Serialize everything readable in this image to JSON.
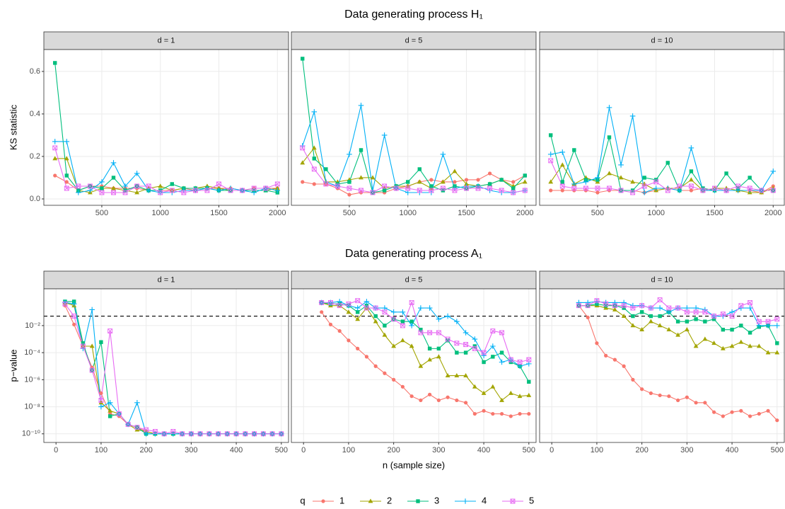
{
  "chart_data": [
    {
      "type": "line",
      "title": "Data generating process H₁",
      "facet": "d = 1",
      "ylabel": "KS statistic",
      "legend_title": "q",
      "x": [
        100,
        200,
        300,
        400,
        500,
        600,
        700,
        800,
        900,
        1000,
        1100,
        1200,
        1300,
        1400,
        1500,
        1600,
        1700,
        1800,
        1900,
        2000
      ],
      "xlim": [
        5,
        2095
      ],
      "xticks": [
        500,
        1000,
        1500,
        2000
      ],
      "ylim": [
        -0.03,
        0.703
      ],
      "yticks": [
        {
          "value": 0,
          "label": "0.0"
        },
        0.2,
        0.4,
        0.6
      ],
      "grid": true,
      "series": [
        {
          "name": "1",
          "color": "#F8766D",
          "values": [
            0.11,
            0.08,
            0.04,
            0.06,
            0.06,
            0.05,
            0.05,
            0.05,
            0.04,
            0.04,
            0.04,
            0.05,
            0.04,
            0.05,
            0.05,
            0.05,
            0.04,
            0.05,
            0.05,
            0.05
          ]
        },
        {
          "name": "2",
          "color": "#A3A500",
          "values": [
            0.19,
            0.19,
            0.04,
            0.03,
            0.05,
            0.05,
            0.04,
            0.03,
            0.05,
            0.06,
            0.04,
            0.05,
            0.05,
            0.06,
            0.05,
            0.04,
            0.04,
            0.04,
            0.04,
            0.05
          ]
        },
        {
          "name": "3",
          "color": "#00BF7D",
          "values": [
            0.64,
            0.11,
            0.04,
            0.06,
            0.05,
            0.1,
            0.04,
            0.06,
            0.04,
            0.04,
            0.07,
            0.05,
            0.05,
            0.05,
            0.04,
            0.04,
            0.04,
            0.04,
            0.04,
            0.03
          ]
        },
        {
          "name": "4",
          "color": "#00B0F6",
          "values": [
            0.27,
            0.27,
            0.03,
            0.04,
            0.08,
            0.17,
            0.06,
            0.12,
            0.04,
            0.03,
            0.03,
            0.04,
            0.04,
            0.05,
            0.04,
            0.05,
            0.04,
            0.03,
            0.05,
            0.04
          ]
        },
        {
          "name": "5",
          "color": "#E76BF3",
          "values": [
            0.24,
            0.05,
            0.06,
            0.06,
            0.03,
            0.03,
            0.03,
            0.06,
            0.06,
            0.03,
            0.04,
            0.03,
            0.04,
            0.04,
            0.07,
            0.04,
            0.04,
            0.05,
            0.05,
            0.07
          ]
        }
      ]
    },
    {
      "type": "line",
      "facet": "d = 5",
      "x": [
        100,
        200,
        300,
        400,
        500,
        600,
        700,
        800,
        900,
        1000,
        1100,
        1200,
        1300,
        1400,
        1500,
        1600,
        1700,
        1800,
        1900,
        2000
      ],
      "xlim": [
        5,
        2095
      ],
      "xticks": [
        500,
        1000,
        1500,
        2000
      ],
      "series": [
        {
          "color": "#F8766D",
          "values": [
            0.08,
            0.07,
            0.07,
            0.05,
            0.02,
            0.03,
            0.03,
            0.03,
            0.05,
            0.06,
            0.08,
            0.09,
            0.08,
            0.08,
            0.09,
            0.09,
            0.12,
            0.09,
            0.08,
            0.11
          ]
        },
        {
          "color": "#A3A500",
          "values": [
            0.17,
            0.24,
            0.08,
            0.08,
            0.09,
            0.1,
            0.1,
            0.05,
            0.06,
            0.06,
            0.08,
            0.05,
            0.08,
            0.13,
            0.07,
            0.06,
            0.07,
            0.09,
            0.06,
            0.08
          ]
        },
        {
          "color": "#00BF7D",
          "values": [
            0.66,
            0.19,
            0.14,
            0.07,
            0.08,
            0.23,
            0.03,
            0.04,
            0.06,
            0.08,
            0.14,
            0.06,
            0.04,
            0.06,
            0.05,
            0.06,
            0.07,
            0.09,
            0.05,
            0.11
          ]
        },
        {
          "color": "#00B0F6",
          "values": [
            0.25,
            0.41,
            0.08,
            0.06,
            0.21,
            0.44,
            0.04,
            0.3,
            0.05,
            0.03,
            0.03,
            0.03,
            0.21,
            0.05,
            0.06,
            0.06,
            0.04,
            0.03,
            0.03,
            0.04
          ]
        },
        {
          "color": "#E76BF3",
          "values": [
            0.24,
            0.14,
            0.07,
            0.06,
            0.05,
            0.04,
            0.03,
            0.06,
            0.05,
            0.05,
            0.04,
            0.04,
            0.05,
            0.04,
            0.05,
            0.05,
            0.05,
            0.04,
            0.03,
            0.04
          ]
        }
      ]
    },
    {
      "type": "line",
      "facet": "d = 10",
      "x": [
        100,
        200,
        300,
        400,
        500,
        600,
        700,
        800,
        900,
        1000,
        1100,
        1200,
        1300,
        1400,
        1500,
        1600,
        1700,
        1800,
        1900,
        2000
      ],
      "xlim": [
        5,
        2095
      ],
      "xticks": [
        500,
        1000,
        1500,
        2000
      ],
      "series": [
        {
          "color": "#F8766D",
          "values": [
            0.04,
            0.04,
            0.04,
            0.04,
            0.03,
            0.04,
            0.04,
            0.04,
            0.03,
            0.04,
            0.05,
            0.04,
            0.04,
            0.05,
            0.04,
            0.04,
            0.04,
            0.04,
            0.03,
            0.06
          ]
        },
        {
          "color": "#A3A500",
          "values": [
            0.08,
            0.16,
            0.07,
            0.1,
            0.08,
            0.12,
            0.1,
            0.08,
            0.07,
            0.04,
            0.05,
            0.05,
            0.09,
            0.04,
            0.05,
            0.05,
            0.04,
            0.03,
            0.03,
            0.05
          ]
        },
        {
          "color": "#00BF7D",
          "values": [
            0.3,
            0.08,
            0.23,
            0.09,
            0.09,
            0.29,
            0.04,
            0.04,
            0.1,
            0.09,
            0.17,
            0.04,
            0.13,
            0.05,
            0.04,
            0.12,
            0.05,
            0.1,
            0.04,
            0.04
          ]
        },
        {
          "color": "#00B0F6",
          "values": [
            0.21,
            0.22,
            0.07,
            0.08,
            0.1,
            0.43,
            0.16,
            0.39,
            0.03,
            0.05,
            0.05,
            0.04,
            0.24,
            0.04,
            0.04,
            0.04,
            0.04,
            0.04,
            0.04,
            0.13
          ]
        },
        {
          "color": "#E76BF3",
          "values": [
            0.18,
            0.06,
            0.05,
            0.05,
            0.05,
            0.05,
            0.04,
            0.03,
            0.06,
            0.08,
            0.04,
            0.06,
            0.06,
            0.04,
            0.05,
            0.04,
            0.06,
            0.05,
            0.04,
            0.04
          ]
        }
      ]
    },
    {
      "type": "line",
      "title": "Data generating process A₁",
      "facet": "d = 1",
      "ylabel": "p−value",
      "log_y": true,
      "reference_line": 0.05,
      "x": [
        20,
        40,
        60,
        80,
        100,
        120,
        140,
        160,
        180,
        200,
        220,
        240,
        260,
        280,
        300,
        320,
        340,
        360,
        380,
        400,
        420,
        440,
        460,
        480,
        500
      ],
      "xlim": [
        -27,
        516
      ],
      "xticks": [
        0,
        100,
        200,
        300,
        400,
        500
      ],
      "ylim": [
        2.3e-11,
        5.2
      ],
      "yticks": [
        {
          "value": 1e-10,
          "label": "10⁻¹⁰"
        },
        {
          "value": 1e-08,
          "label": "10⁻⁸"
        },
        {
          "value": 1e-06,
          "label": "10⁻⁶"
        },
        {
          "value": 0.0001,
          "label": "10⁻⁴"
        },
        {
          "value": 0.01,
          "label": "10⁻²"
        }
      ],
      "grid": true,
      "series": [
        {
          "color": "#F8766D",
          "values": [
            0.3,
            0.012,
            0.0003,
            8e-06,
            1e-07,
            3e-09,
            2e-09,
            5e-10,
            3e-10,
            1.5e-10,
            1e-10,
            1e-10,
            1e-10,
            1e-10,
            1e-10,
            1e-10,
            1e-10,
            1e-10,
            1e-10,
            1e-10,
            1e-10,
            1e-10,
            1e-10,
            1e-10,
            1e-10
          ]
        },
        {
          "color": "#A3A500",
          "values": [
            0.5,
            0.3,
            0.0003,
            0.0003,
            2e-08,
            5e-09,
            3e-09,
            5e-10,
            2e-10,
            1.5e-10,
            1e-10,
            1e-10,
            1e-10,
            1e-10,
            1e-10,
            1e-10,
            1e-10,
            1e-10,
            1e-10,
            1e-10,
            1e-10,
            1e-10,
            1e-10,
            1e-10,
            1e-10
          ]
        },
        {
          "color": "#00BF7D",
          "values": [
            0.6,
            0.6,
            0.0005,
            5e-06,
            0.0006,
            2e-09,
            3e-09,
            5e-10,
            3e-10,
            1e-10,
            1e-10,
            1e-10,
            1e-10,
            1e-10,
            1e-10,
            1e-10,
            1e-10,
            1e-10,
            1e-10,
            1e-10,
            1e-10,
            1e-10,
            1e-10,
            1e-10,
            1e-10
          ]
        },
        {
          "color": "#00B0F6",
          "values": [
            0.5,
            0.4,
            0.0002,
            0.15,
            1e-08,
            2e-08,
            3e-09,
            5e-10,
            2e-08,
            1e-10,
            1e-10,
            1e-10,
            1e-10,
            1e-10,
            1e-10,
            1e-10,
            1e-10,
            1e-10,
            1e-10,
            1e-10,
            1e-10,
            1e-10,
            1e-10,
            1e-10,
            1e-10
          ]
        },
        {
          "color": "#E76BF3",
          "values": [
            0.4,
            0.05,
            0.0003,
            5e-06,
            3e-08,
            0.004,
            3e-09,
            5e-10,
            3e-10,
            2e-10,
            1.5e-10,
            1e-10,
            1.5e-10,
            1e-10,
            1e-10,
            1e-10,
            1e-10,
            1e-10,
            1e-10,
            1e-10,
            1e-10,
            1e-10,
            1e-10,
            1e-10,
            1e-10
          ]
        }
      ]
    },
    {
      "type": "line",
      "facet": "d = 5",
      "xlabel": "n (sample size)",
      "reference_line": 0.05,
      "x": [
        40,
        60,
        80,
        100,
        120,
        140,
        160,
        180,
        200,
        220,
        240,
        260,
        280,
        300,
        320,
        340,
        360,
        380,
        400,
        420,
        440,
        460,
        480,
        500
      ],
      "xlim": [
        -27,
        516
      ],
      "xticks": [
        0,
        100,
        200,
        300,
        400,
        500
      ],
      "series": [
        {
          "color": "#F8766D",
          "values": [
            0.1,
            0.012,
            0.004,
            0.0008,
            0.0002,
            5e-05,
            1e-05,
            3e-06,
            1e-06,
            3e-07,
            6e-08,
            3e-08,
            8e-08,
            3e-08,
            5e-08,
            3e-08,
            2e-08,
            3e-09,
            5e-09,
            3e-09,
            3e-09,
            2e-09,
            3e-09,
            3e-09
          ]
        },
        {
          "color": "#A3A500",
          "values": [
            0.5,
            0.3,
            0.3,
            0.1,
            0.03,
            0.2,
            0.02,
            0.002,
            0.0003,
            0.0008,
            0.0003,
            1e-05,
            3e-05,
            5e-05,
            2e-06,
            2e-06,
            2e-06,
            3e-07,
            1e-07,
            3e-07,
            3e-08,
            1e-07,
            6e-08,
            7e-08
          ]
        },
        {
          "color": "#00BF7D",
          "values": [
            0.5,
            0.4,
            0.4,
            0.3,
            0.1,
            0.3,
            0.05,
            0.01,
            0.03,
            0.02,
            0.02,
            0.005,
            0.0002,
            0.0002,
            0.0008,
            0.0001,
            0.0001,
            0.0003,
            2e-05,
            5e-05,
            0.0001,
            2e-05,
            1e-05,
            7e-07
          ]
        },
        {
          "color": "#00B0F6",
          "values": [
            0.5,
            0.5,
            0.6,
            0.3,
            0.2,
            0.6,
            0.2,
            0.2,
            0.1,
            0.1,
            0.01,
            0.2,
            0.2,
            0.03,
            0.05,
            0.02,
            0.003,
            0.001,
            6e-05,
            0.0003,
            2e-05,
            3e-05,
            1e-05,
            1.5e-05
          ]
        },
        {
          "color": "#E76BF3",
          "values": [
            0.5,
            0.5,
            0.3,
            0.4,
            0.7,
            0.2,
            0.2,
            0.1,
            0.03,
            0.01,
            0.5,
            0.003,
            0.003,
            0.003,
            0.001,
            0.0005,
            0.0004,
            0.0002,
            0.0001,
            0.004,
            0.003,
            3e-05,
            2e-05,
            3e-05
          ]
        }
      ]
    },
    {
      "type": "line",
      "facet": "d = 10",
      "reference_line": 0.05,
      "x": [
        60,
        80,
        100,
        120,
        140,
        160,
        180,
        200,
        220,
        240,
        260,
        280,
        300,
        320,
        340,
        360,
        380,
        400,
        420,
        440,
        460,
        480,
        500
      ],
      "xlim": [
        -27,
        516
      ],
      "xticks": [
        0,
        100,
        200,
        300,
        400,
        500
      ],
      "series": [
        {
          "color": "#F8766D",
          "values": [
            0.3,
            0.04,
            0.0005,
            6e-05,
            3e-05,
            1e-05,
            1e-06,
            2e-07,
            1e-07,
            7e-08,
            6e-08,
            3e-08,
            5e-08,
            2e-08,
            2e-08,
            4e-09,
            2e-09,
            4e-09,
            5e-09,
            2e-09,
            3e-09,
            5e-09,
            1e-09
          ]
        },
        {
          "color": "#A3A500",
          "values": [
            0.3,
            0.3,
            0.3,
            0.2,
            0.15,
            0.05,
            0.01,
            0.005,
            0.02,
            0.01,
            0.005,
            0.002,
            0.005,
            0.0003,
            0.001,
            0.0005,
            0.0002,
            0.0003,
            0.0006,
            0.0003,
            0.0003,
            0.0001,
            0.0001
          ]
        },
        {
          "color": "#00BF7D",
          "values": [
            0.3,
            0.3,
            0.4,
            0.3,
            0.3,
            0.2,
            0.05,
            0.1,
            0.05,
            0.05,
            0.1,
            0.02,
            0.02,
            0.03,
            0.02,
            0.03,
            0.005,
            0.005,
            0.01,
            0.003,
            0.008,
            0.01,
            0.0005
          ]
        },
        {
          "color": "#00B0F6",
          "values": [
            0.5,
            0.5,
            0.6,
            0.5,
            0.5,
            0.5,
            0.3,
            0.3,
            0.2,
            0.2,
            0.1,
            0.2,
            0.2,
            0.2,
            0.15,
            0.05,
            0.05,
            0.1,
            0.2,
            0.2,
            0.01,
            0.01,
            0.01
          ]
        },
        {
          "color": "#E76BF3",
          "values": [
            0.3,
            0.3,
            0.7,
            0.4,
            0.3,
            0.3,
            0.2,
            0.3,
            0.2,
            0.8,
            0.2,
            0.2,
            0.1,
            0.1,
            0.1,
            0.05,
            0.07,
            0.05,
            0.3,
            0.5,
            0.02,
            0.02,
            0.03
          ]
        }
      ]
    }
  ]
}
